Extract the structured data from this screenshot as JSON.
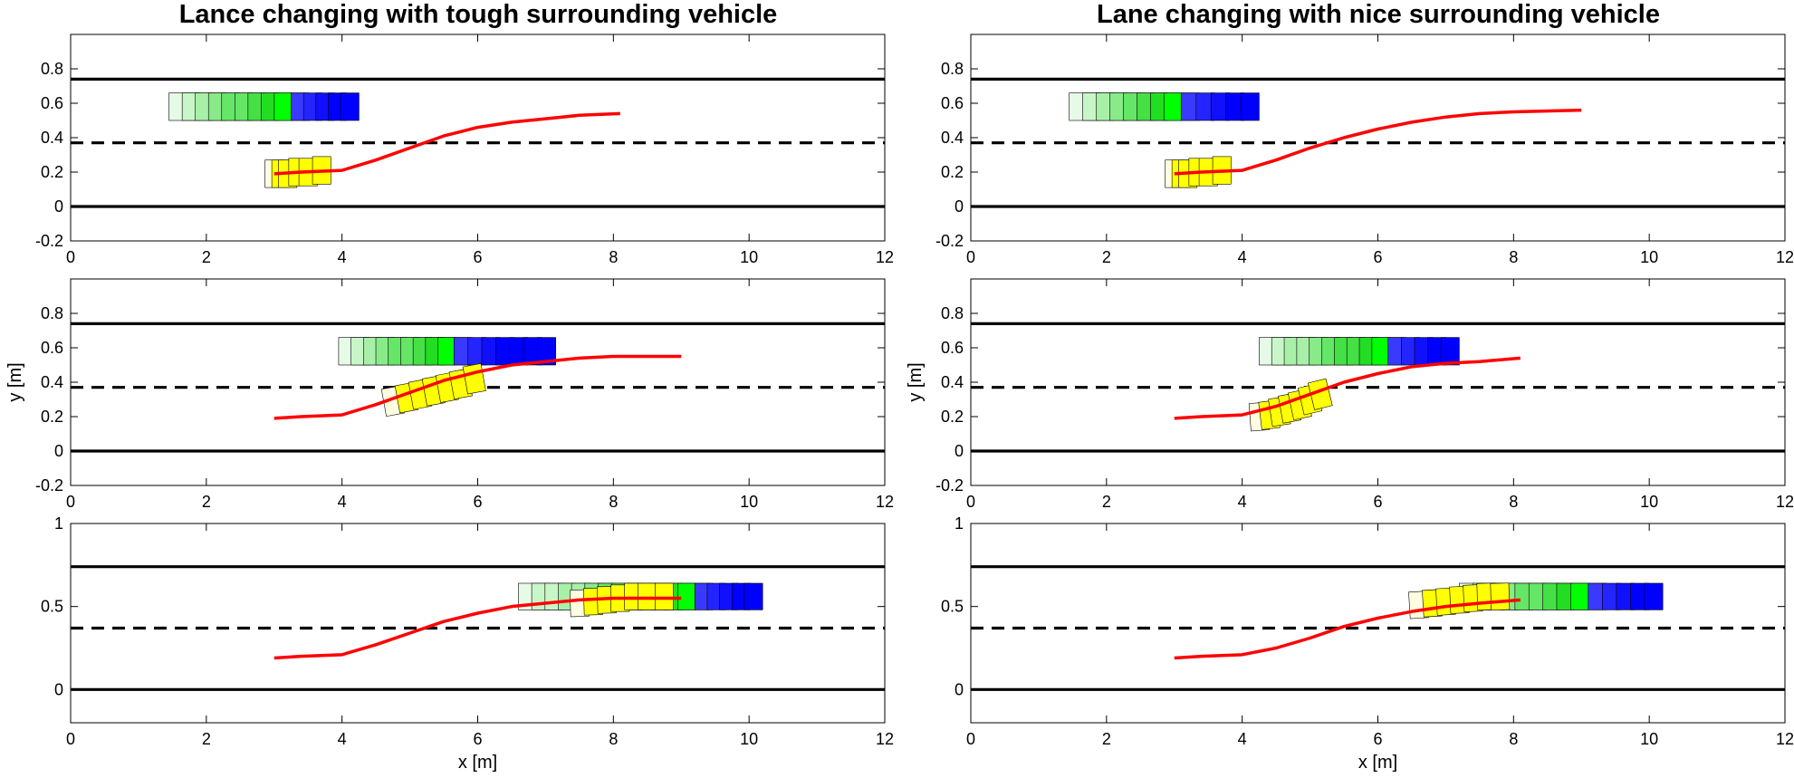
{
  "figure": {
    "columns": [
      {
        "title": "Lance changing with tough surrounding vehicle"
      },
      {
        "title": "Lane changing with nice surrounding vehicle"
      }
    ],
    "xlabel": "x [m]",
    "ylabel": "y [m]"
  },
  "colors": {
    "trajectory": "#ff0000",
    "ego": "#ffff00",
    "surrounding_early": "#00ff00",
    "surrounding_late": "#0000ff",
    "lane_line": "#000000",
    "axes": "#000000"
  },
  "chart_data": [
    {
      "type": "line",
      "panel": "tough-1",
      "title": "Lance changing with tough surrounding vehicle",
      "xlabel": "",
      "ylabel": "",
      "xlim": [
        0,
        12
      ],
      "ylim": [
        -0.2,
        1.0
      ],
      "xticks": [
        "0",
        "2",
        "4",
        "6",
        "8",
        "10",
        "12"
      ],
      "yticks": [
        "-0.2",
        "0",
        "0.2",
        "0.4",
        "0.6",
        "0.8"
      ],
      "grid": false,
      "lanes": {
        "solid": [
          0,
          0.74
        ],
        "dashed": [
          0.37
        ]
      },
      "trajectory": [
        [
          3.0,
          0.19
        ],
        [
          3.4,
          0.2
        ],
        [
          4.0,
          0.21
        ],
        [
          4.5,
          0.27
        ],
        [
          5.0,
          0.34
        ],
        [
          5.5,
          0.41
        ],
        [
          6.0,
          0.46
        ],
        [
          6.5,
          0.49
        ],
        [
          7.0,
          0.51
        ],
        [
          7.5,
          0.53
        ],
        [
          8.1,
          0.54
        ]
      ],
      "surrounding": {
        "x_start": 1.45,
        "x_end": 4.25,
        "y": 0.58,
        "blue_from": 3.25
      },
      "ego_boxes": [
        [
          3.0,
          0.19,
          0.0
        ],
        [
          3.1,
          0.19,
          0.0
        ],
        [
          3.2,
          0.19,
          0.0
        ],
        [
          3.35,
          0.2,
          0.0
        ],
        [
          3.5,
          0.2,
          0.0
        ],
        [
          3.7,
          0.21,
          0.0
        ]
      ]
    },
    {
      "type": "line",
      "panel": "tough-2",
      "xlabel": "",
      "ylabel": "y [m]",
      "xlim": [
        0,
        12
      ],
      "ylim": [
        -0.2,
        1.0
      ],
      "xticks": [
        "0",
        "2",
        "4",
        "6",
        "8",
        "10",
        "12"
      ],
      "yticks": [
        "-0.2",
        "0",
        "0.2",
        "0.4",
        "0.6",
        "0.8"
      ],
      "grid": false,
      "lanes": {
        "solid": [
          0,
          0.74
        ],
        "dashed": [
          0.37
        ]
      },
      "trajectory": [
        [
          3.0,
          0.19
        ],
        [
          3.4,
          0.2
        ],
        [
          4.0,
          0.21
        ],
        [
          4.5,
          0.27
        ],
        [
          5.0,
          0.34
        ],
        [
          5.5,
          0.41
        ],
        [
          6.0,
          0.46
        ],
        [
          6.5,
          0.5
        ],
        [
          7.0,
          0.52
        ],
        [
          7.5,
          0.54
        ],
        [
          8.0,
          0.55
        ],
        [
          9.0,
          0.55
        ]
      ],
      "surrounding": {
        "x_start": 3.95,
        "x_end": 7.15,
        "y": 0.58,
        "blue_from": 5.65
      },
      "ego_boxes": [
        [
          4.75,
          0.29,
          0.12
        ],
        [
          4.95,
          0.31,
          0.12
        ],
        [
          5.15,
          0.33,
          0.12
        ],
        [
          5.35,
          0.35,
          0.12
        ],
        [
          5.55,
          0.37,
          0.12
        ],
        [
          5.75,
          0.39,
          0.12
        ],
        [
          5.95,
          0.42,
          0.12
        ]
      ]
    },
    {
      "type": "line",
      "panel": "tough-3",
      "xlabel": "x [m]",
      "ylabel": "",
      "xlim": [
        0,
        12
      ],
      "ylim": [
        -0.2,
        1.0
      ],
      "xticks": [
        "0",
        "2",
        "4",
        "6",
        "8",
        "10",
        "12"
      ],
      "yticks": [
        "0",
        "0.5",
        "1"
      ],
      "grid": false,
      "lanes": {
        "solid": [
          0,
          0.74
        ],
        "dashed": [
          0.37
        ]
      },
      "trajectory": [
        [
          3.0,
          0.19
        ],
        [
          3.4,
          0.2
        ],
        [
          4.0,
          0.21
        ],
        [
          4.5,
          0.27
        ],
        [
          5.0,
          0.34
        ],
        [
          5.5,
          0.41
        ],
        [
          6.0,
          0.46
        ],
        [
          6.5,
          0.5
        ],
        [
          7.0,
          0.52
        ],
        [
          7.5,
          0.54
        ],
        [
          8.0,
          0.55
        ],
        [
          9.0,
          0.55
        ]
      ],
      "surrounding": {
        "x_start": 6.6,
        "x_end": 10.2,
        "y": 0.56,
        "blue_from": 9.2
      },
      "ego_boxes": [
        [
          7.5,
          0.52,
          0.02
        ],
        [
          7.7,
          0.53,
          0.02
        ],
        [
          7.9,
          0.54,
          0.02
        ],
        [
          8.1,
          0.55,
          0.0
        ],
        [
          8.3,
          0.56,
          0.0
        ],
        [
          8.5,
          0.56,
          0.0
        ],
        [
          8.75,
          0.56,
          0.0
        ]
      ]
    },
    {
      "type": "line",
      "panel": "nice-1",
      "title": "Lane changing with nice surrounding vehicle",
      "xlabel": "",
      "ylabel": "",
      "xlim": [
        0,
        12
      ],
      "ylim": [
        -0.2,
        1.0
      ],
      "xticks": [
        "0",
        "2",
        "4",
        "6",
        "8",
        "10",
        "12"
      ],
      "yticks": [
        "-0.2",
        "0",
        "0.2",
        "0.4",
        "0.6",
        "0.8"
      ],
      "grid": false,
      "lanes": {
        "solid": [
          0,
          0.74
        ],
        "dashed": [
          0.37
        ]
      },
      "trajectory": [
        [
          3.0,
          0.19
        ],
        [
          3.4,
          0.2
        ],
        [
          4.0,
          0.21
        ],
        [
          4.5,
          0.27
        ],
        [
          5.0,
          0.34
        ],
        [
          5.5,
          0.4
        ],
        [
          6.0,
          0.45
        ],
        [
          6.5,
          0.49
        ],
        [
          7.0,
          0.52
        ],
        [
          7.5,
          0.54
        ],
        [
          8.0,
          0.55
        ],
        [
          9.0,
          0.56
        ]
      ],
      "surrounding": {
        "x_start": 1.45,
        "x_end": 4.25,
        "y": 0.58,
        "blue_from": 3.1
      },
      "ego_boxes": [
        [
          3.0,
          0.19,
          0.0
        ],
        [
          3.1,
          0.19,
          0.0
        ],
        [
          3.2,
          0.19,
          0.0
        ],
        [
          3.35,
          0.2,
          0.0
        ],
        [
          3.5,
          0.2,
          0.0
        ],
        [
          3.7,
          0.21,
          0.0
        ]
      ]
    },
    {
      "type": "line",
      "panel": "nice-2",
      "xlabel": "",
      "ylabel": "y [m]",
      "xlim": [
        0,
        12
      ],
      "ylim": [
        -0.2,
        1.0
      ],
      "xticks": [
        "0",
        "2",
        "4",
        "6",
        "8",
        "10",
        "12"
      ],
      "yticks": [
        "-0.2",
        "0",
        "0.2",
        "0.4",
        "0.6",
        "0.8"
      ],
      "grid": false,
      "lanes": {
        "solid": [
          0,
          0.74
        ],
        "dashed": [
          0.37
        ]
      },
      "trajectory": [
        [
          3.0,
          0.19
        ],
        [
          3.4,
          0.2
        ],
        [
          4.0,
          0.21
        ],
        [
          4.5,
          0.26
        ],
        [
          5.0,
          0.33
        ],
        [
          5.5,
          0.4
        ],
        [
          6.0,
          0.45
        ],
        [
          6.5,
          0.49
        ],
        [
          7.0,
          0.51
        ],
        [
          7.5,
          0.52
        ],
        [
          8.1,
          0.54
        ]
      ],
      "surrounding": {
        "x_start": 4.25,
        "x_end": 7.2,
        "y": 0.58,
        "blue_from": 6.15
      },
      "ego_boxes": [
        [
          4.25,
          0.2,
          0.05
        ],
        [
          4.4,
          0.21,
          0.08
        ],
        [
          4.55,
          0.23,
          0.1
        ],
        [
          4.7,
          0.25,
          0.12
        ],
        [
          4.85,
          0.27,
          0.14
        ],
        [
          5.0,
          0.3,
          0.15
        ],
        [
          5.15,
          0.33,
          0.16
        ]
      ]
    },
    {
      "type": "line",
      "panel": "nice-3",
      "xlabel": "x [m]",
      "ylabel": "",
      "xlim": [
        0,
        12
      ],
      "ylim": [
        -0.2,
        1.0
      ],
      "xticks": [
        "0",
        "2",
        "4",
        "6",
        "8",
        "10",
        "12"
      ],
      "yticks": [
        "0",
        "0.5",
        "1"
      ],
      "grid": false,
      "lanes": {
        "solid": [
          0,
          0.74
        ],
        "dashed": [
          0.37
        ]
      },
      "trajectory": [
        [
          3.0,
          0.19
        ],
        [
          3.4,
          0.2
        ],
        [
          4.0,
          0.21
        ],
        [
          4.5,
          0.25
        ],
        [
          5.0,
          0.31
        ],
        [
          5.5,
          0.38
        ],
        [
          6.0,
          0.43
        ],
        [
          6.5,
          0.47
        ],
        [
          7.0,
          0.5
        ],
        [
          7.5,
          0.52
        ],
        [
          8.1,
          0.54
        ]
      ],
      "surrounding": {
        "x_start": 7.2,
        "x_end": 10.2,
        "y": 0.56,
        "blue_from": 9.1
      },
      "ego_boxes": [
        [
          6.6,
          0.51,
          0.04
        ],
        [
          6.8,
          0.52,
          0.04
        ],
        [
          7.0,
          0.53,
          0.04
        ],
        [
          7.2,
          0.54,
          0.03
        ],
        [
          7.4,
          0.55,
          0.03
        ],
        [
          7.6,
          0.56,
          0.02
        ],
        [
          7.8,
          0.56,
          0.02
        ]
      ]
    }
  ]
}
